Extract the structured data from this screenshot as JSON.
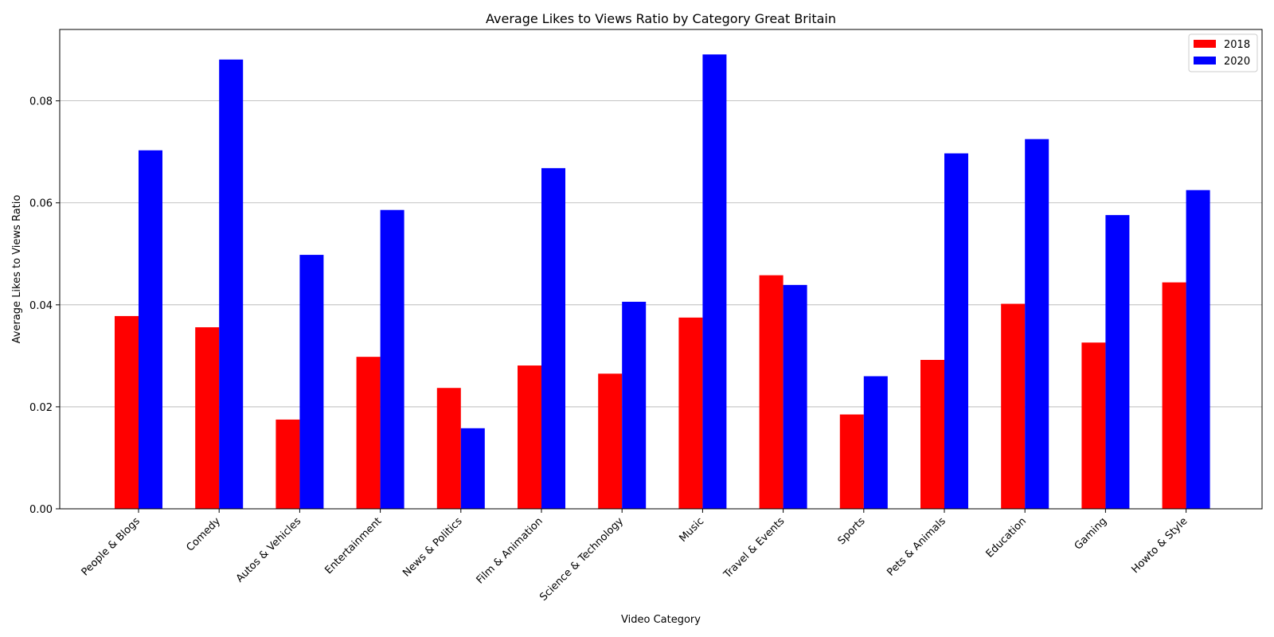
{
  "chart_data": {
    "type": "bar",
    "title": "Average Likes to Views Ratio by Category Great Britain",
    "xlabel": "Video Category",
    "ylabel": "Average Likes to Views Ratio",
    "ylim": [
      0,
      0.094
    ],
    "yticks": [
      "0.00",
      "0.02",
      "0.04",
      "0.06",
      "0.08"
    ],
    "grid": "y",
    "legend_position": "top-right",
    "categories": [
      "People & Blogs",
      "Comedy",
      "Autos & Vehicles",
      "Entertainment",
      "News & Politics",
      "Film & Animation",
      "Science & Technology",
      "Music",
      "Travel & Events",
      "Sports",
      "Pets & Animals",
      "Education",
      "Gaming",
      "Howto & Style"
    ],
    "series": [
      {
        "name": "2018",
        "color": "#ff0000",
        "values": [
          0.0378,
          0.0356,
          0.0175,
          0.0298,
          0.0237,
          0.0281,
          0.0265,
          0.0375,
          0.0458,
          0.0185,
          0.0292,
          0.0402,
          0.0326,
          0.0444
        ]
      },
      {
        "name": "2020",
        "color": "#0000ff",
        "values": [
          0.0703,
          0.0881,
          0.0498,
          0.0586,
          0.0158,
          0.0668,
          0.0406,
          0.0891,
          0.0439,
          0.026,
          0.0697,
          0.0725,
          0.0576,
          0.0625
        ]
      }
    ]
  }
}
